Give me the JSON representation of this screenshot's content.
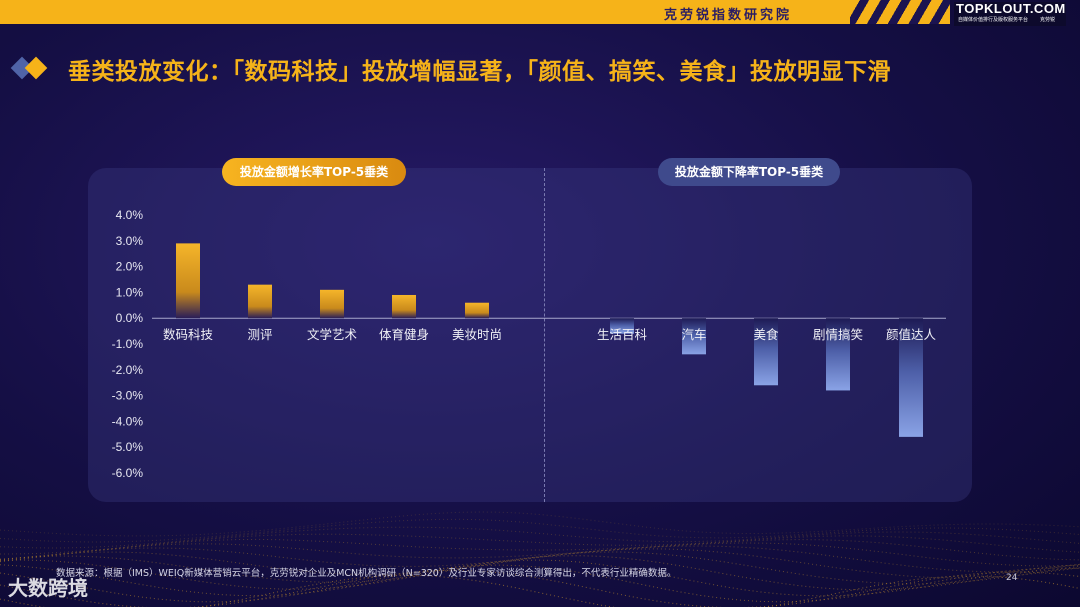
{
  "header": {
    "institute": "克劳锐指数研究院",
    "logo": "TOPKLOUT.COM",
    "logo_sub": "自媒体价值排行及版权服务平台",
    "logo_sub2": "克劳锐"
  },
  "title": "垂类投放变化：「数码科技」投放增幅显著，「颜值、搞笑、美食」投放明显下滑",
  "panel": {
    "left_label": "投放金额增长率TOP-5垂类",
    "right_label": "投放金额下降率TOP-5垂类"
  },
  "colors": {
    "accent": "#f6b319",
    "bar_up": "#f5b52a",
    "bar_down": "#7d93d8"
  },
  "chart_data": {
    "type": "bar",
    "y_ticks": [
      "4.0%",
      "3.0%",
      "2.0%",
      "1.0%",
      "0.0%",
      "-1.0%",
      "-2.0%",
      "-3.0%",
      "-4.0%",
      "-5.0%",
      "-6.0%"
    ],
    "ylim": [
      -6,
      4
    ],
    "increase": {
      "categories": [
        "数码科技",
        "测评",
        "文学艺术",
        "体育健身",
        "美妆时尚"
      ],
      "values": [
        2.9,
        1.3,
        1.1,
        0.9,
        0.6
      ]
    },
    "decrease": {
      "categories": [
        "生活百科",
        "汽车",
        "美食",
        "剧情搞笑",
        "颜值达人"
      ],
      "values": [
        -0.6,
        -1.4,
        -2.6,
        -2.8,
        -4.6
      ]
    }
  },
  "footer": {
    "source": "数据来源：根据（IMS）WEIQ新媒体营销云平台，克劳锐对企业及MCN机构调研（N=320）及行业专家访谈综合测算得出，不代表行业精确数据。",
    "page": "24",
    "watermark": "大数跨境"
  }
}
